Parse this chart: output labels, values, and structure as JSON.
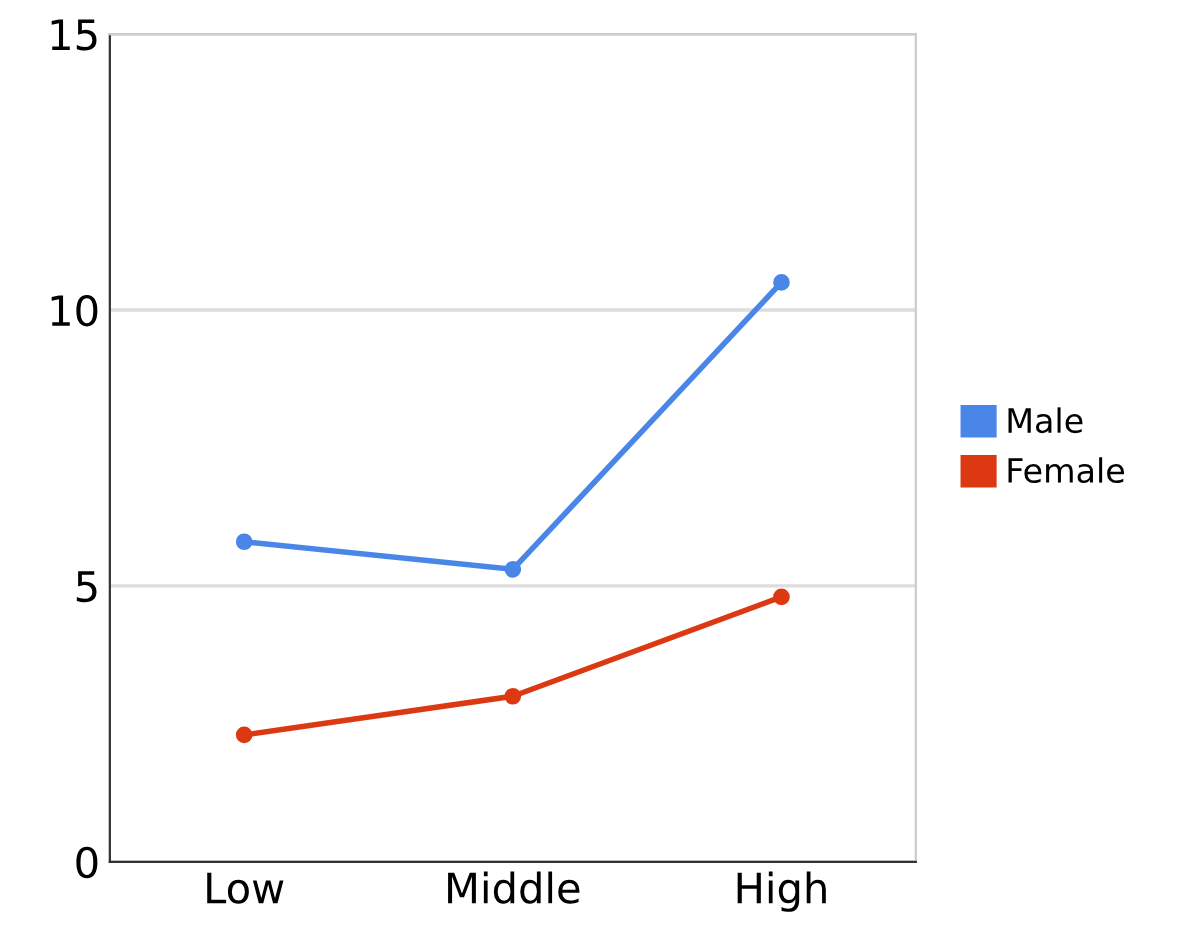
{
  "chart_data": {
    "type": "line",
    "categories": [
      "Low",
      "Middle",
      "High"
    ],
    "series": [
      {
        "name": "Male",
        "color": "#4a86e8",
        "values": [
          5.8,
          5.3,
          10.5
        ]
      },
      {
        "name": "Female",
        "color": "#dc3912",
        "values": [
          2.3,
          3.0,
          4.8
        ]
      }
    ],
    "ylim": [
      0,
      15
    ],
    "yticks": [
      0,
      5,
      10,
      15
    ],
    "grid": "y",
    "legend": "right",
    "marker": "circle",
    "line_style": "solid"
  }
}
